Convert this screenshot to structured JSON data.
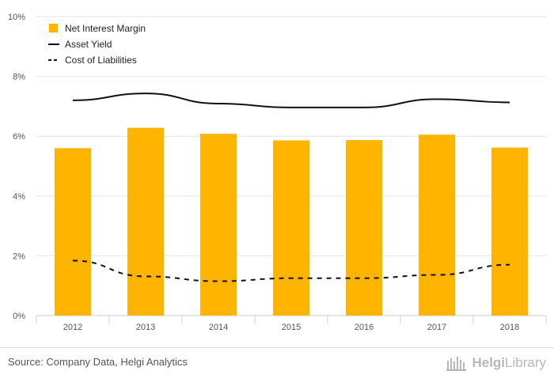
{
  "chart_data": {
    "type": "bar",
    "title": "",
    "xlabel": "",
    "ylabel": "",
    "categories": [
      "2012",
      "2013",
      "2014",
      "2015",
      "2016",
      "2017",
      "2018"
    ],
    "ylim": [
      0,
      10
    ],
    "y_ticks": [
      "0%",
      "2%",
      "4%",
      "6%",
      "8%",
      "10%"
    ],
    "grid": "horizontal",
    "legend_position": "top-left",
    "series": [
      {
        "name": "Net Interest Margin",
        "kind": "bar",
        "color": "#ffb400",
        "values": [
          5.6,
          6.28,
          6.08,
          5.86,
          5.87,
          6.05,
          5.62
        ]
      },
      {
        "name": "Asset Yield",
        "kind": "line",
        "style": "solid",
        "color": "#111111",
        "values": [
          7.2,
          7.43,
          7.09,
          6.96,
          6.96,
          7.24,
          7.13
        ]
      },
      {
        "name": "Cost of Liabilities",
        "kind": "line",
        "style": "dashed",
        "color": "#111111",
        "values": [
          1.84,
          1.31,
          1.15,
          1.25,
          1.25,
          1.36,
          1.7
        ]
      }
    ]
  },
  "footer": {
    "source": "Source: Company Data, Helgi Analytics",
    "brand_name": "Helgi",
    "brand_suffix": "Library"
  },
  "colors": {
    "grid": "#e6e6e6",
    "axis": "#cccccc",
    "tick_text": "#555555",
    "brand": "#b7b7b7"
  }
}
